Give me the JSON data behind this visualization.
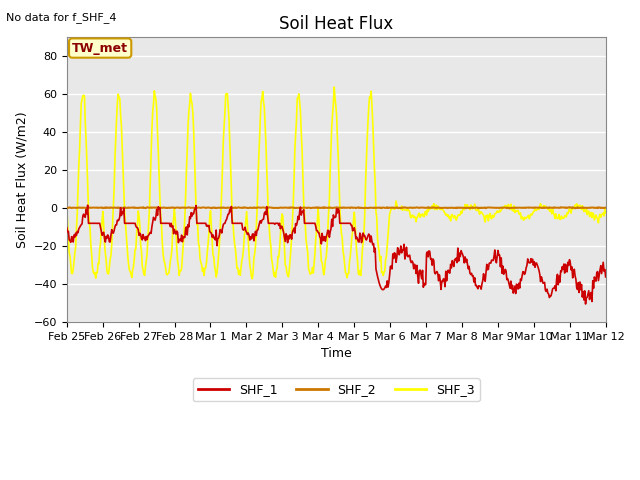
{
  "title": "Soil Heat Flux",
  "top_left_text": "No data for f_SHF_4",
  "ylabel": "Soil Heat Flux (W/m2)",
  "xlabel": "Time",
  "annotation_label": "TW_met",
  "annotation_color": "#8B0000",
  "annotation_bg": "#FFFFCC",
  "annotation_border": "#CC9900",
  "ylim": [
    -60,
    90
  ],
  "yticks": [
    -60,
    -40,
    -20,
    0,
    20,
    40,
    60,
    80
  ],
  "bg_color": "#E8E8E8",
  "grid_color": "#FFFFFF",
  "shf1_color": "#CC0000",
  "shf2_color": "#CC7700",
  "shf3_color": "#FFFF00",
  "lw": 1.2,
  "xtick_labels": [
    "Feb 25",
    "Feb 26",
    "Feb 27",
    "Feb 28",
    "Mar 1",
    "Mar 2",
    "Mar 3",
    "Mar 4",
    "Mar 5",
    "Mar 6",
    "Mar 7",
    "Mar 8",
    "Mar 9",
    "Mar 10",
    "Mar 11",
    "Mar 12"
  ],
  "num_points": 672,
  "title_fontsize": 12,
  "label_fontsize": 9,
  "tick_fontsize": 8
}
